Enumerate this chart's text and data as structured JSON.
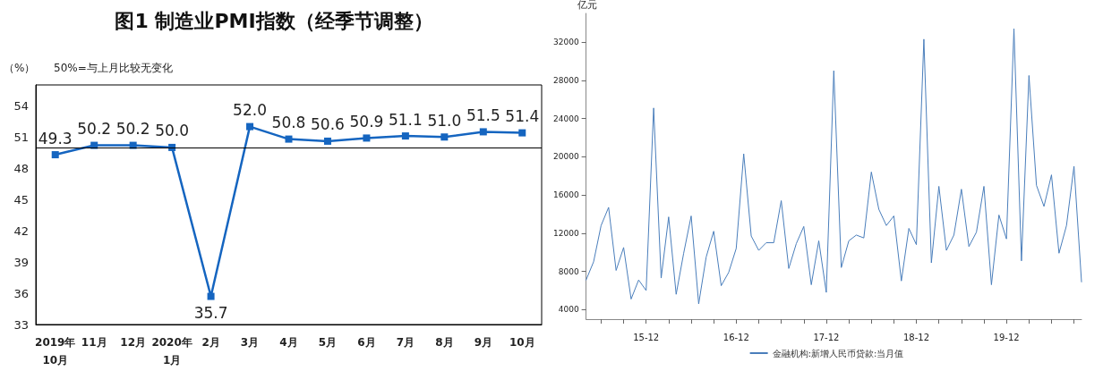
{
  "chart_data": [
    {
      "type": "line",
      "title": "图1 制造业PMI指数（经季节调整）",
      "ylabel": "（%）",
      "annotations": [
        "50%=与上月比较无变化"
      ],
      "categories": [
        "2019年\n10月",
        "11月",
        "12月",
        "2020年\n1月",
        "2月",
        "3月",
        "4月",
        "5月",
        "6月",
        "7月",
        "8月",
        "9月",
        "10月"
      ],
      "series": [
        {
          "color": "#1565c0",
          "values": [
            49.3,
            50.2,
            50.2,
            50.0,
            35.7,
            52.0,
            50.8,
            50.6,
            50.9,
            51.1,
            51.0,
            51.5,
            51.4
          ],
          "value_labels": [
            "49.3",
            "50.2",
            "50.2",
            "50.0",
            "35.7",
            "52.0",
            "50.8",
            "50.6",
            "50.9",
            "51.1",
            "51.0",
            "51.5",
            "51.4"
          ]
        }
      ],
      "ylim": [
        33,
        56
      ],
      "yticks": [
        33,
        36,
        39,
        42,
        45,
        48,
        51,
        54
      ],
      "ref_lines": [
        {
          "axis": "y",
          "value": 50,
          "color": "#000000"
        }
      ],
      "marker": "square",
      "grid": false,
      "legend": false
    },
    {
      "type": "line",
      "ylabel": "亿元",
      "categories": [
        null,
        null,
        null,
        null,
        null,
        null,
        null,
        null,
        "15-12",
        null,
        null,
        null,
        null,
        null,
        null,
        null,
        null,
        null,
        null,
        null,
        "16-12",
        null,
        null,
        null,
        null,
        null,
        null,
        null,
        null,
        null,
        null,
        null,
        "17-12",
        null,
        null,
        null,
        null,
        null,
        null,
        null,
        null,
        null,
        null,
        null,
        "18-12",
        null,
        null,
        null,
        null,
        null,
        null,
        null,
        null,
        null,
        null,
        null,
        "19-12",
        null,
        null,
        null,
        null,
        null,
        null,
        null,
        null,
        null,
        null
      ],
      "series": [
        {
          "name": "金融机构:新增人民币贷款:当月值",
          "color": "#4a7ebb",
          "values": [
            7100,
            9000,
            12800,
            14700,
            8100,
            10500,
            5100,
            7100,
            6000,
            25100,
            7300,
            13700,
            5600,
            9900,
            13800,
            4600,
            9500,
            12200,
            6500,
            7900,
            10400,
            20300,
            11700,
            10200,
            11000,
            11000,
            15400,
            8300,
            10900,
            12700,
            6600,
            11200,
            5800,
            29000,
            8400,
            11200,
            11800,
            11500,
            18400,
            14500,
            12800,
            13800,
            7000,
            12500,
            10800,
            32300,
            8900,
            16900,
            10200,
            11800,
            16600,
            10600,
            12100,
            16900,
            6600,
            13900,
            11400,
            33400,
            9100,
            28500,
            17000,
            14800,
            18100,
            9900,
            12800,
            19000,
            6900
          ]
        }
      ],
      "ylim": [
        3000,
        35000
      ],
      "yticks": [
        4000,
        8000,
        12000,
        16000,
        20000,
        24000,
        28000,
        32000
      ],
      "marker": "none",
      "grid": false,
      "legend": "bottom"
    }
  ]
}
